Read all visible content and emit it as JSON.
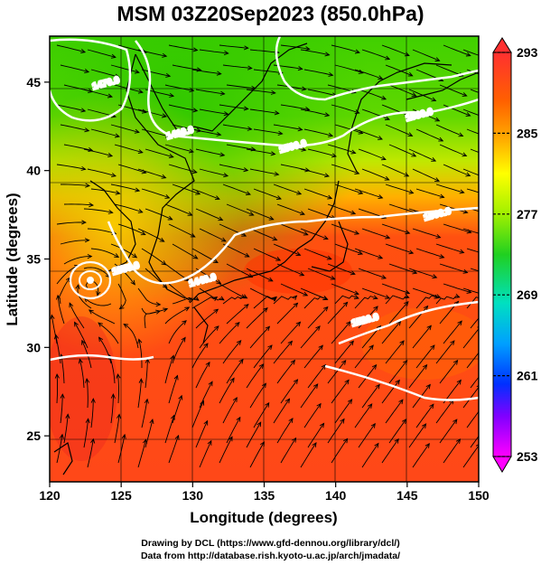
{
  "title": "MSM 03Z20Sep2023 (850.0hPa)",
  "xaxis": {
    "label": "Longitude (degrees)",
    "ticks": [
      "120",
      "125",
      "130",
      "135",
      "140",
      "145",
      "150"
    ],
    "range": [
      120,
      150
    ]
  },
  "yaxis": {
    "label": "Latitude  (degrees)",
    "ticks": [
      "25",
      "30",
      "35",
      "40",
      "45"
    ],
    "range": [
      22.4,
      47.6
    ]
  },
  "colorbar": {
    "ticks": [
      "293",
      "285",
      "277",
      "269",
      "261",
      "253"
    ],
    "range": [
      253,
      293
    ],
    "colors": [
      "#ff00ff",
      "#c000ff",
      "#0000ff",
      "#00a0ff",
      "#00e0e0",
      "#00ff80",
      "#40e000",
      "#a0ff00",
      "#ffff00",
      "#ffa000",
      "#ff4000",
      "#ff3030"
    ]
  },
  "contours": [
    {
      "label": "1470.0",
      "value": 1470
    },
    {
      "label": "1500.0",
      "value": 1500
    },
    {
      "label": "1530.0",
      "value": 1530
    },
    {
      "label": "1560.0",
      "value": 1560
    },
    {
      "label": "1520.0",
      "value": 1520
    },
    {
      "label": "1550.0",
      "value": 1550
    },
    {
      "label": "1440.0",
      "value": 1440
    },
    {
      "label": "1410.0",
      "value": 1410
    }
  ],
  "credits": {
    "line1": "Drawing by DCL (https://www.gfd-dennou.org/library/dcl/)",
    "line2": "Data from http://database.rish.kyoto-u.ac.jp/arch/jmadata/"
  },
  "colors": {
    "contour": "#ffffff",
    "streamline": "#000000",
    "coast": "#000000"
  }
}
